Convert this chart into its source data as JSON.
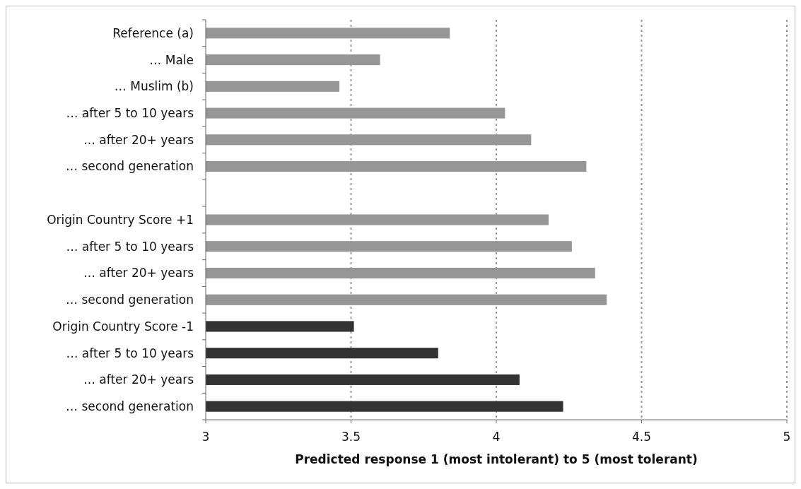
{
  "chart_data": {
    "type": "bar",
    "orientation": "horizontal",
    "xlabel": "Predicted response 1 (most intolerant) to 5 (most tolerant)",
    "categories": [
      "Reference (a)",
      "… Male",
      "… Muslim (b)",
      "… after 5 to 10 years",
      "… after 20+ years",
      "… second generation",
      null,
      "Origin Country Score +1",
      "… after 5 to 10 years",
      "… after 20+ years",
      "… second generation",
      "Origin Country Score -1",
      "… after 5 to 10 years",
      "… after 20+ years",
      "… second generation"
    ],
    "values": [
      3.84,
      3.6,
      3.46,
      4.03,
      4.12,
      4.31,
      null,
      4.18,
      4.26,
      4.34,
      4.38,
      3.51,
      3.8,
      4.08,
      4.23
    ],
    "colors": [
      "#969696",
      "#969696",
      "#969696",
      "#969696",
      "#969696",
      "#969696",
      null,
      "#969696",
      "#969696",
      "#969696",
      "#969696",
      "#333333",
      "#333333",
      "#333333",
      "#333333"
    ],
    "xlim": [
      3,
      5
    ],
    "xticks": [
      3,
      3.5,
      4,
      4.5,
      5
    ],
    "grid": "x"
  }
}
